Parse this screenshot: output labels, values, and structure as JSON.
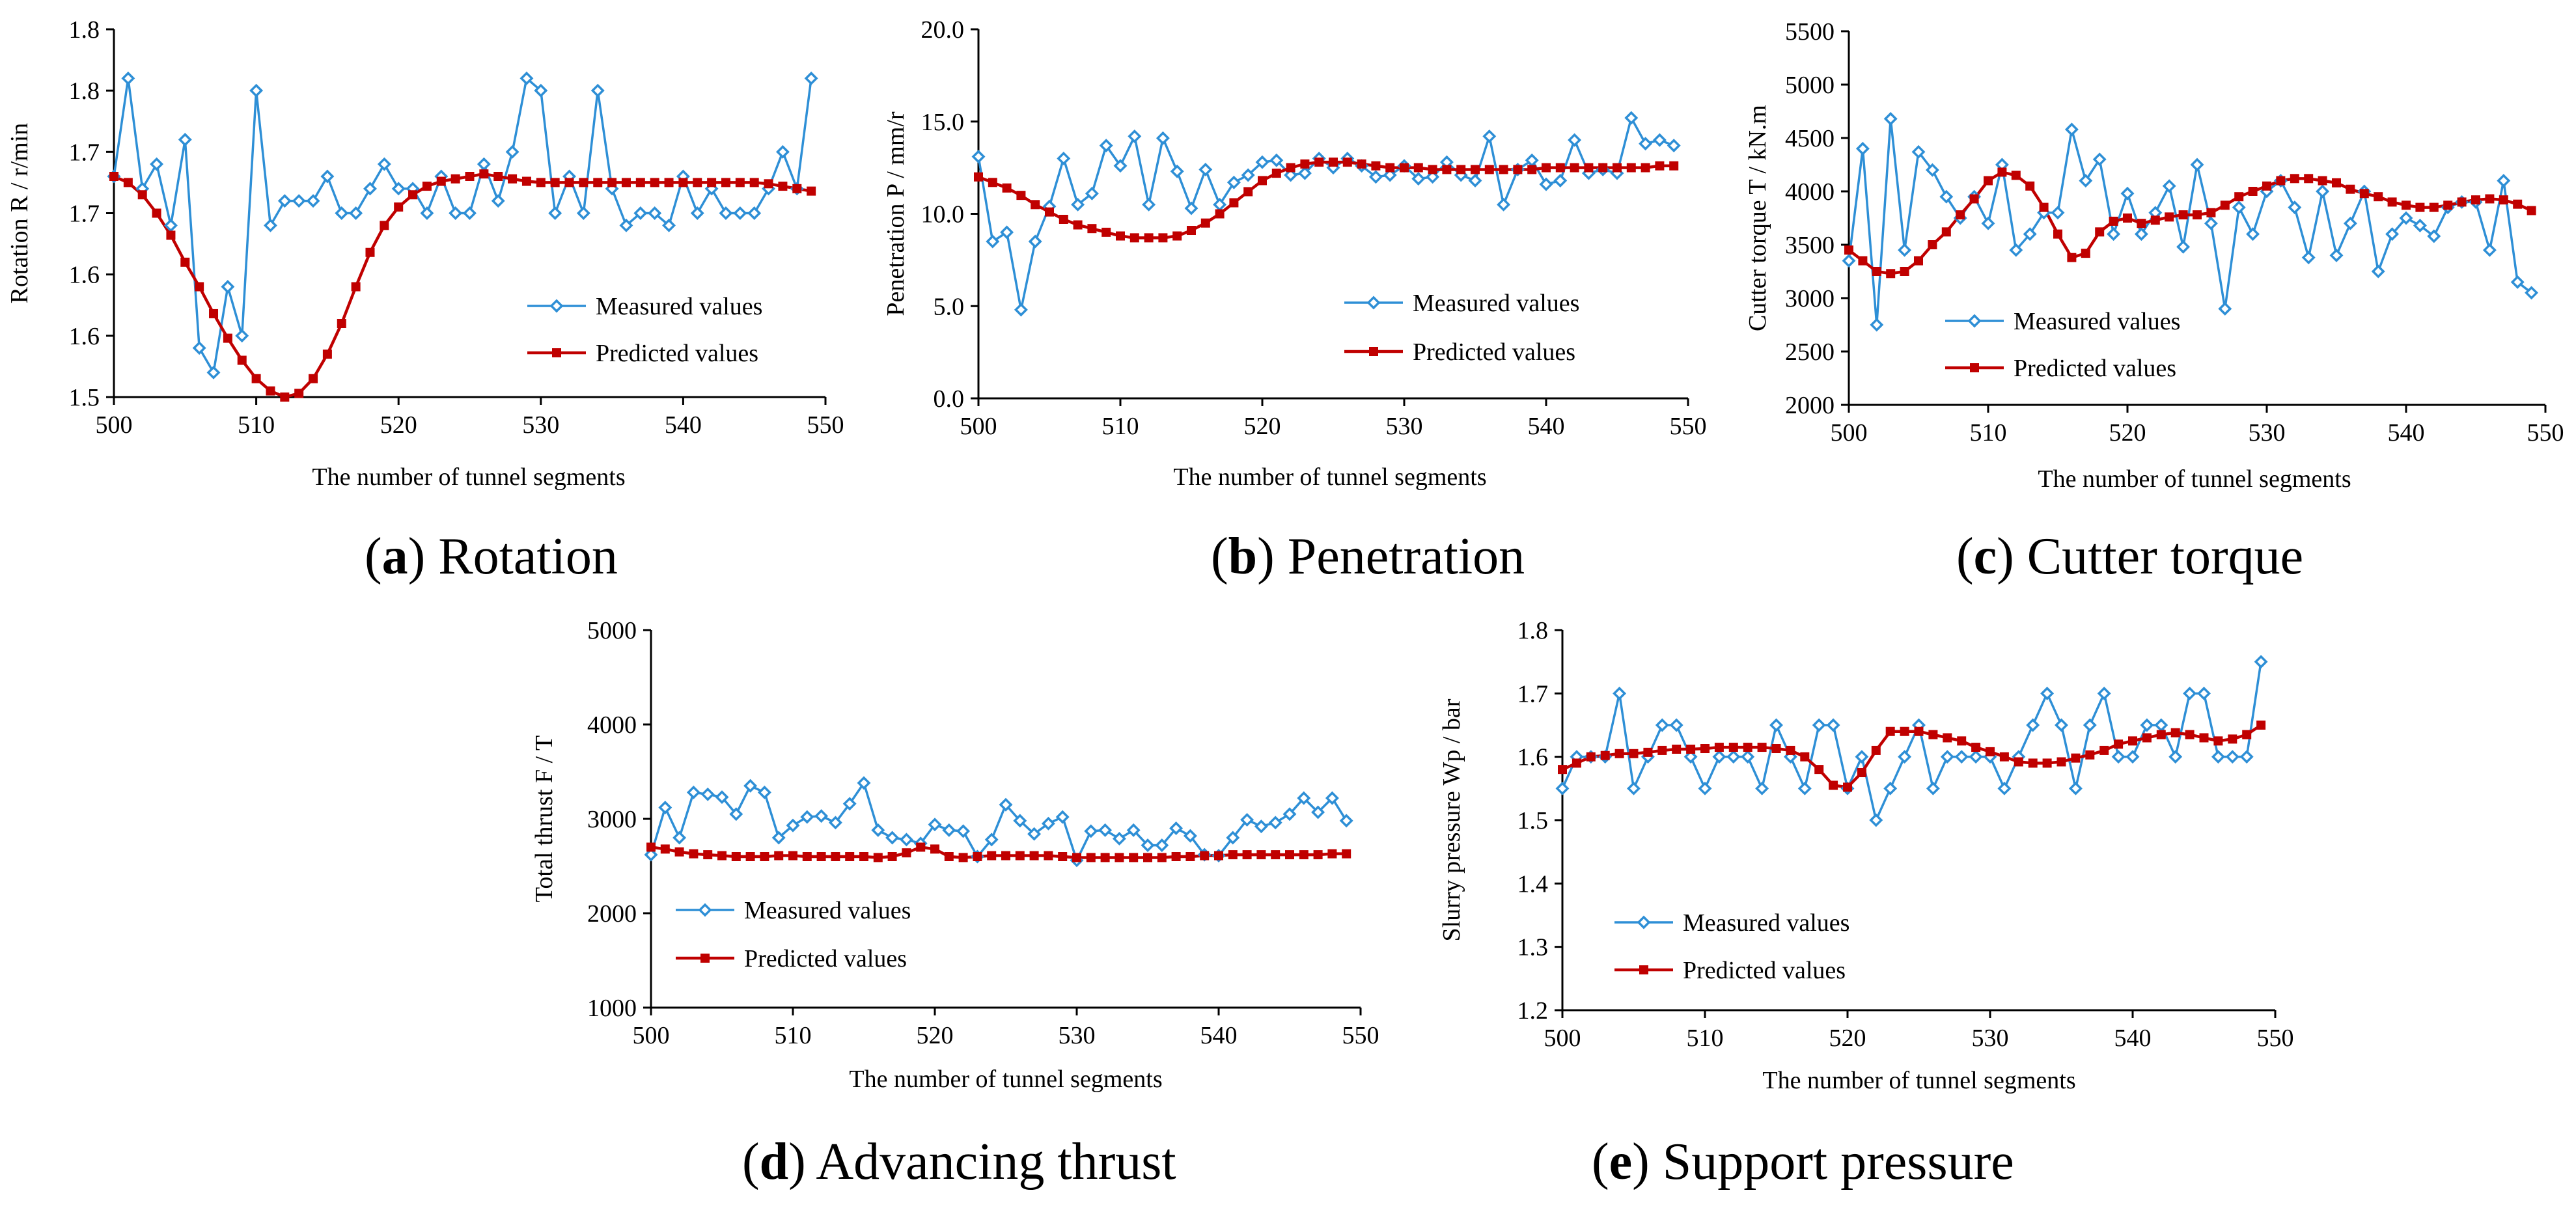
{
  "colors": {
    "measured": "#2E8FD6",
    "predicted": "#C00000",
    "axis": "#000000"
  },
  "legend": {
    "measured": "Measured values",
    "predicted": "Predicted values"
  },
  "chart_data": [
    {
      "id": "a",
      "type": "line",
      "caption": {
        "letter": "a",
        "text": "Rotation"
      },
      "xlabel": "The number of tunnel segments",
      "ylabel": "Rotation R / r/min",
      "xlim": [
        500,
        550
      ],
      "ylim": [
        1.5,
        1.8
      ],
      "xticks": [
        "500",
        "510",
        "520",
        "530",
        "540",
        "550"
      ],
      "yticks": [
        "1.5",
        "1.6",
        "1.6",
        "1.7",
        "1.7",
        "1.8",
        "1.8"
      ],
      "ytick_values": [
        1.5,
        1.55,
        1.6,
        1.65,
        1.7,
        1.75,
        1.8
      ],
      "x": [
        500,
        501,
        502,
        503,
        504,
        505,
        506,
        507,
        508,
        509,
        510,
        511,
        512,
        513,
        514,
        515,
        516,
        517,
        518,
        519,
        520,
        521,
        522,
        523,
        524,
        525,
        526,
        527,
        528,
        529,
        530,
        531,
        532,
        533,
        534,
        535,
        536,
        537,
        538,
        539,
        540,
        541,
        542,
        543,
        544,
        545,
        546,
        547,
        548,
        549
      ],
      "series": [
        {
          "name": "Measured values",
          "values": [
            1.68,
            1.76,
            1.67,
            1.69,
            1.64,
            1.71,
            1.54,
            1.52,
            1.59,
            1.55,
            1.75,
            1.64,
            1.66,
            1.66,
            1.66,
            1.68,
            1.65,
            1.65,
            1.67,
            1.69,
            1.67,
            1.67,
            1.65,
            1.68,
            1.65,
            1.65,
            1.69,
            1.66,
            1.7,
            1.76,
            1.75,
            1.65,
            1.68,
            1.65,
            1.75,
            1.67,
            1.64,
            1.65,
            1.65,
            1.64,
            1.68,
            1.65,
            1.67,
            1.65,
            1.65,
            1.65,
            1.67,
            1.7,
            1.67,
            1.76
          ]
        },
        {
          "name": "Predicted values",
          "values": [
            1.68,
            1.675,
            1.665,
            1.65,
            1.632,
            1.61,
            1.59,
            1.568,
            1.548,
            1.53,
            1.515,
            1.505,
            1.5,
            1.503,
            1.515,
            1.535,
            1.56,
            1.59,
            1.618,
            1.64,
            1.655,
            1.665,
            1.672,
            1.676,
            1.678,
            1.68,
            1.682,
            1.68,
            1.678,
            1.676,
            1.675,
            1.675,
            1.675,
            1.675,
            1.675,
            1.675,
            1.675,
            1.675,
            1.675,
            1.675,
            1.675,
            1.675,
            1.675,
            1.675,
            1.675,
            1.675,
            1.674,
            1.672,
            1.67,
            1.668
          ]
        }
      ]
    },
    {
      "id": "b",
      "type": "line",
      "caption": {
        "letter": "b",
        "text": "Penetration"
      },
      "xlabel": "The number of tunnel segments",
      "ylabel": "Penetration P / mm/r",
      "xlim": [
        500,
        550
      ],
      "ylim": [
        0,
        20
      ],
      "xticks": [
        "500",
        "510",
        "520",
        "530",
        "540",
        "550"
      ],
      "yticks": [
        "0.0",
        "5.0",
        "10.0",
        "15.0",
        "20.0"
      ],
      "ytick_values": [
        0,
        5,
        10,
        15,
        20
      ],
      "x": [
        500,
        501,
        502,
        503,
        504,
        505,
        506,
        507,
        508,
        509,
        510,
        511,
        512,
        513,
        514,
        515,
        516,
        517,
        518,
        519,
        520,
        521,
        522,
        523,
        524,
        525,
        526,
        527,
        528,
        529,
        530,
        531,
        532,
        533,
        534,
        535,
        536,
        537,
        538,
        539,
        540,
        541,
        542,
        543,
        544,
        545,
        546,
        547,
        548,
        549
      ],
      "series": [
        {
          "name": "Measured values",
          "values": [
            13.1,
            8.5,
            9.0,
            4.8,
            8.5,
            10.4,
            13.0,
            10.5,
            11.1,
            13.7,
            12.6,
            14.2,
            10.5,
            14.1,
            12.3,
            10.3,
            12.4,
            10.5,
            11.7,
            12.1,
            12.8,
            12.9,
            12.1,
            12.2,
            13.0,
            12.5,
            13.0,
            12.6,
            12.0,
            12.1,
            12.6,
            11.9,
            12.0,
            12.8,
            12.1,
            11.8,
            14.2,
            10.5,
            12.4,
            12.9,
            11.6,
            11.8,
            14.0,
            12.2,
            12.4,
            12.2,
            15.2,
            13.8,
            14.0,
            13.7
          ]
        },
        {
          "name": "Predicted values",
          "values": [
            12.0,
            11.7,
            11.4,
            11.0,
            10.5,
            10.1,
            9.7,
            9.4,
            9.2,
            9.0,
            8.8,
            8.7,
            8.7,
            8.7,
            8.8,
            9.1,
            9.5,
            10.0,
            10.6,
            11.2,
            11.8,
            12.2,
            12.5,
            12.7,
            12.8,
            12.8,
            12.8,
            12.7,
            12.6,
            12.5,
            12.5,
            12.5,
            12.4,
            12.4,
            12.4,
            12.4,
            12.4,
            12.4,
            12.4,
            12.4,
            12.5,
            12.5,
            12.5,
            12.5,
            12.5,
            12.5,
            12.5,
            12.5,
            12.6,
            12.6
          ]
        }
      ]
    },
    {
      "id": "c",
      "type": "line",
      "caption": {
        "letter": "c",
        "text": "Cutter torque"
      },
      "xlabel": "The number of tunnel segments",
      "ylabel": "Cutter torque T / kN.m",
      "xlim": [
        500,
        550
      ],
      "ylim": [
        2000,
        5500
      ],
      "xticks": [
        "500",
        "510",
        "520",
        "530",
        "540",
        "550"
      ],
      "yticks": [
        "2000",
        "2500",
        "3000",
        "3500",
        "4000",
        "4500",
        "5000",
        "5500"
      ],
      "ytick_values": [
        2000,
        2500,
        3000,
        3500,
        4000,
        4500,
        5000,
        5500
      ],
      "x": [
        500,
        501,
        502,
        503,
        504,
        505,
        506,
        507,
        508,
        509,
        510,
        511,
        512,
        513,
        514,
        515,
        516,
        517,
        518,
        519,
        520,
        521,
        522,
        523,
        524,
        525,
        526,
        527,
        528,
        529,
        530,
        531,
        532,
        533,
        534,
        535,
        536,
        537,
        538,
        539,
        540,
        541,
        542,
        543,
        544,
        545,
        546,
        547,
        548,
        549
      ],
      "series": [
        {
          "name": "Measured values",
          "values": [
            3350,
            4400,
            2750,
            4680,
            3450,
            4370,
            4200,
            3950,
            3750,
            3950,
            3700,
            4250,
            3450,
            3600,
            3800,
            3800,
            4580,
            4100,
            4300,
            3600,
            3980,
            3600,
            3800,
            4050,
            3480,
            4250,
            3700,
            2900,
            3850,
            3600,
            4000,
            4100,
            3850,
            3380,
            4000,
            3400,
            3700,
            4000,
            3250,
            3600,
            3750,
            3680,
            3580,
            3850,
            3900,
            3900,
            3450,
            4100,
            3150,
            3050
          ]
        },
        {
          "name": "Predicted values",
          "values": [
            3450,
            3350,
            3250,
            3230,
            3250,
            3350,
            3500,
            3620,
            3780,
            3930,
            4100,
            4180,
            4150,
            4050,
            3850,
            3600,
            3380,
            3420,
            3620,
            3720,
            3750,
            3700,
            3730,
            3760,
            3780,
            3780,
            3800,
            3870,
            3950,
            4000,
            4050,
            4100,
            4120,
            4120,
            4100,
            4080,
            4020,
            3980,
            3950,
            3900,
            3870,
            3850,
            3850,
            3870,
            3900,
            3920,
            3930,
            3920,
            3880,
            3820
          ]
        }
      ]
    },
    {
      "id": "d",
      "type": "line",
      "caption": {
        "letter": "d",
        "text": "Advancing thrust"
      },
      "xlabel": "The number of tunnel segments",
      "ylabel": "Total thrust F / T",
      "xlim": [
        500,
        550
      ],
      "ylim": [
        1000,
        5000
      ],
      "xticks": [
        "500",
        "510",
        "520",
        "530",
        "540",
        "550"
      ],
      "yticks": [
        "1000",
        "2000",
        "3000",
        "4000",
        "5000"
      ],
      "ytick_values": [
        1000,
        2000,
        3000,
        4000,
        5000
      ],
      "x": [
        500,
        501,
        502,
        503,
        504,
        505,
        506,
        507,
        508,
        509,
        510,
        511,
        512,
        513,
        514,
        515,
        516,
        517,
        518,
        519,
        520,
        521,
        522,
        523,
        524,
        525,
        526,
        527,
        528,
        529,
        530,
        531,
        532,
        533,
        534,
        535,
        536,
        537,
        538,
        539,
        540,
        541,
        542,
        543,
        544,
        545,
        546,
        547,
        548,
        549
      ],
      "series": [
        {
          "name": "Measured values",
          "values": [
            2620,
            3120,
            2800,
            3280,
            3260,
            3230,
            3050,
            3350,
            3280,
            2800,
            2930,
            3020,
            3030,
            2960,
            3160,
            3380,
            2880,
            2800,
            2780,
            2740,
            2940,
            2880,
            2870,
            2600,
            2780,
            3150,
            2980,
            2840,
            2950,
            3020,
            2560,
            2870,
            2880,
            2790,
            2880,
            2720,
            2720,
            2900,
            2820,
            2620,
            2610,
            2800,
            2990,
            2920,
            2960,
            3050,
            3220,
            3070,
            3220,
            2980
          ]
        },
        {
          "name": "Predicted values",
          "values": [
            2700,
            2680,
            2650,
            2630,
            2620,
            2610,
            2600,
            2600,
            2600,
            2610,
            2610,
            2600,
            2600,
            2600,
            2600,
            2600,
            2590,
            2600,
            2640,
            2700,
            2680,
            2600,
            2590,
            2600,
            2610,
            2610,
            2610,
            2610,
            2610,
            2600,
            2590,
            2590,
            2590,
            2590,
            2590,
            2590,
            2590,
            2600,
            2600,
            2610,
            2610,
            2620,
            2620,
            2620,
            2620,
            2620,
            2620,
            2620,
            2630,
            2630
          ]
        }
      ]
    },
    {
      "id": "e",
      "type": "line",
      "caption": {
        "letter": "e",
        "text": "Support pressure"
      },
      "xlabel": "The number of tunnel segments",
      "ylabel": "Slurry pressure Wp / bar",
      "xlim": [
        500,
        550
      ],
      "ylim": [
        1.2,
        1.8
      ],
      "xticks": [
        "500",
        "510",
        "520",
        "530",
        "540",
        "550"
      ],
      "yticks": [
        "1.2",
        "1.3",
        "1.4",
        "1.5",
        "1.6",
        "1.7",
        "1.8"
      ],
      "ytick_values": [
        1.2,
        1.3,
        1.4,
        1.5,
        1.6,
        1.7,
        1.8
      ],
      "x": [
        500,
        501,
        502,
        503,
        504,
        505,
        506,
        507,
        508,
        509,
        510,
        511,
        512,
        513,
        514,
        515,
        516,
        517,
        518,
        519,
        520,
        521,
        522,
        523,
        524,
        525,
        526,
        527,
        528,
        529,
        530,
        531,
        532,
        533,
        534,
        535,
        536,
        537,
        538,
        539,
        540,
        541,
        542,
        543,
        544,
        545,
        546,
        547,
        548,
        549
      ],
      "series": [
        {
          "name": "Measured values",
          "values": [
            1.55,
            1.6,
            1.6,
            1.6,
            1.7,
            1.55,
            1.6,
            1.65,
            1.65,
            1.6,
            1.55,
            1.6,
            1.6,
            1.6,
            1.55,
            1.65,
            1.6,
            1.55,
            1.65,
            1.65,
            1.55,
            1.6,
            1.5,
            1.55,
            1.6,
            1.65,
            1.55,
            1.6,
            1.6,
            1.6,
            1.6,
            1.55,
            1.6,
            1.65,
            1.7,
            1.65,
            1.55,
            1.65,
            1.7,
            1.6,
            1.6,
            1.65,
            1.65,
            1.6,
            1.7,
            1.7,
            1.6,
            1.6,
            1.6,
            1.75
          ]
        },
        {
          "name": "Predicted values",
          "values": [
            1.58,
            1.59,
            1.6,
            1.602,
            1.605,
            1.605,
            1.607,
            1.61,
            1.612,
            1.612,
            1.613,
            1.615,
            1.615,
            1.615,
            1.615,
            1.613,
            1.61,
            1.6,
            1.58,
            1.555,
            1.552,
            1.575,
            1.61,
            1.64,
            1.64,
            1.64,
            1.635,
            1.63,
            1.625,
            1.615,
            1.608,
            1.6,
            1.592,
            1.59,
            1.59,
            1.592,
            1.598,
            1.603,
            1.61,
            1.62,
            1.625,
            1.63,
            1.635,
            1.638,
            1.635,
            1.63,
            1.625,
            1.628,
            1.635,
            1.65
          ]
        }
      ]
    }
  ]
}
